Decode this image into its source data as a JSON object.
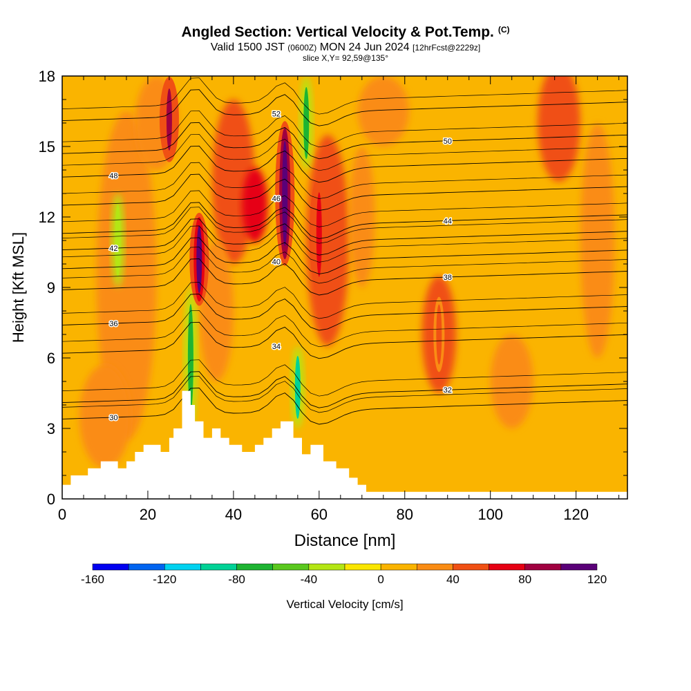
{
  "title": {
    "main": "Angled Section: Vertical Velocity & Pot.Temp.",
    "copyright": "(C)",
    "valid_prefix": "Valid 1500 JST",
    "valid_utc": "(0600Z)",
    "valid_date": "MON 24 Jun 2024",
    "valid_fcst": "[12hrFcst@2229z]",
    "slice": "slice X,Y= 92,59@135°"
  },
  "chart_data": {
    "type": "heatmap",
    "xlabel": "Distance [nm]",
    "ylabel": "Height [Kft MSL]",
    "xlim": [
      0,
      132
    ],
    "ylim": [
      0,
      18
    ],
    "xticks": [
      0,
      20,
      40,
      60,
      80,
      100,
      120
    ],
    "yticks": [
      0,
      3,
      6,
      9,
      12,
      15,
      18
    ],
    "colorbar": {
      "label": "Vertical Velocity [cm/s]",
      "min": -160,
      "max": 120,
      "step": 20,
      "tick_labels": [
        -160,
        -120,
        -80,
        -40,
        0,
        40,
        80,
        120
      ],
      "colors": [
        "#0000f0",
        "#0064f0",
        "#00d2f0",
        "#00d296",
        "#1eb432",
        "#5ac81e",
        "#b4e614",
        "#fae600",
        "#fab400",
        "#fa8c14",
        "#f05014",
        "#e60014",
        "#a00040",
        "#5a0078"
      ]
    },
    "theta_contour_labels": [
      30,
      32,
      34,
      36,
      38,
      40,
      42,
      44,
      46,
      48,
      50,
      52
    ],
    "theta_contour_levels_profile": [
      {
        "theta": 30,
        "height_kft": 3.9
      },
      {
        "theta": 32,
        "height_kft": 4.6
      },
      {
        "theta": 34,
        "height_kft": 6.7
      },
      {
        "theta": 36,
        "height_kft": 7.9
      },
      {
        "theta": 38,
        "height_kft": 9.4
      },
      {
        "theta": 40,
        "height_kft": 10.3
      },
      {
        "theta": 42,
        "height_kft": 11.1
      },
      {
        "theta": 44,
        "height_kft": 11.8
      },
      {
        "theta": 46,
        "height_kft": 13.0
      },
      {
        "theta": 48,
        "height_kft": 14.2
      },
      {
        "theta": 50,
        "height_kft": 15.2
      },
      {
        "theta": 52,
        "height_kft": 16.6
      }
    ],
    "terrain": [
      {
        "x": 0,
        "h": 0.6
      },
      {
        "x": 2,
        "h": 1.0
      },
      {
        "x": 6,
        "h": 1.3
      },
      {
        "x": 9,
        "h": 1.6
      },
      {
        "x": 13,
        "h": 1.3
      },
      {
        "x": 15,
        "h": 1.6
      },
      {
        "x": 17,
        "h": 2.0
      },
      {
        "x": 19,
        "h": 2.3
      },
      {
        "x": 23,
        "h": 2.0
      },
      {
        "x": 25,
        "h": 2.6
      },
      {
        "x": 26,
        "h": 3.0
      },
      {
        "x": 28,
        "h": 4.6
      },
      {
        "x": 30,
        "h": 4.0
      },
      {
        "x": 31,
        "h": 3.3
      },
      {
        "x": 33,
        "h": 2.6
      },
      {
        "x": 35,
        "h": 3.0
      },
      {
        "x": 37,
        "h": 2.6
      },
      {
        "x": 39,
        "h": 2.3
      },
      {
        "x": 42,
        "h": 2.0
      },
      {
        "x": 45,
        "h": 2.3
      },
      {
        "x": 47,
        "h": 2.6
      },
      {
        "x": 49,
        "h": 3.0
      },
      {
        "x": 51,
        "h": 3.3
      },
      {
        "x": 54,
        "h": 2.6
      },
      {
        "x": 56,
        "h": 1.9
      },
      {
        "x": 58,
        "h": 2.3
      },
      {
        "x": 61,
        "h": 1.6
      },
      {
        "x": 64,
        "h": 1.3
      },
      {
        "x": 67,
        "h": 0.9
      },
      {
        "x": 69,
        "h": 0.6
      },
      {
        "x": 71,
        "h": 0.3
      },
      {
        "x": 132,
        "h": 0.3
      }
    ],
    "updraft_cores": [
      {
        "x": 25,
        "h_from": 14.5,
        "h_to": 17.8,
        "w_cm_s": 80
      },
      {
        "x": 32,
        "h_from": 8.4,
        "h_to": 12.0,
        "w_cm_s": 100
      },
      {
        "x": 52,
        "h_from": 10.2,
        "h_to": 15.8,
        "w_cm_s": 120
      },
      {
        "x": 60,
        "h_from": 9.0,
        "h_to": 13.5,
        "w_cm_s": 60
      },
      {
        "x": 88,
        "h_from": 5.4,
        "h_to": 8.6,
        "w_cm_s": 50
      }
    ],
    "downdraft_bands": [
      {
        "x": 30,
        "h_from": 3.0,
        "h_to": 9.0,
        "w_cm_s": -80
      },
      {
        "x": 55,
        "h_from": 3.0,
        "h_to": 6.5,
        "w_cm_s": -100
      },
      {
        "x": 57,
        "h_from": 14.0,
        "h_to": 18.0,
        "w_cm_s": -80
      },
      {
        "x": 13,
        "h_from": 9.0,
        "h_to": 13.0,
        "w_cm_s": -40
      }
    ]
  }
}
